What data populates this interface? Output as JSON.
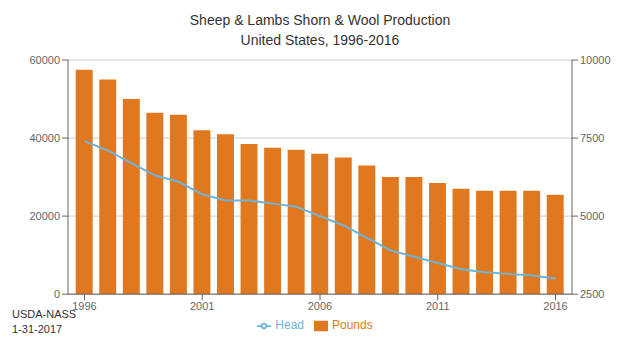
{
  "chart_data": {
    "type": "bar",
    "title": "Sheep & Lambs Shorn & Wool Production",
    "subtitle": "United States, 1996-2016",
    "annotations": [
      "USDA-NASS",
      "1-31-2017"
    ],
    "x": [
      1996,
      1997,
      1998,
      1999,
      2000,
      2001,
      2002,
      2003,
      2004,
      2005,
      2006,
      2007,
      2008,
      2009,
      2010,
      2011,
      2012,
      2013,
      2014,
      2015,
      2016
    ],
    "xlim": [
      1995.3,
      2016.7
    ],
    "xticks": [
      1996,
      2001,
      2006,
      2011,
      2016
    ],
    "ylim": [
      0,
      60000
    ],
    "yticks": [
      0,
      20000,
      40000,
      60000
    ],
    "y2lim": [
      2500,
      10000
    ],
    "y2ticks": [
      2500,
      5000,
      7500,
      10000
    ],
    "grid": true,
    "legend": "bottom",
    "series": [
      {
        "name": "Pounds",
        "type": "bar",
        "color": "#E07820",
        "values": [
          57500,
          55000,
          50000,
          46500,
          46000,
          42000,
          41000,
          38500,
          37500,
          37000,
          36000,
          35000,
          33000,
          30000,
          30000,
          28500,
          27000,
          26500,
          26500,
          26500,
          25500
        ]
      },
      {
        "name": "Head",
        "type": "line",
        "axis": "y2",
        "color": "#6EB4D8",
        "values": [
          7400,
          7100,
          6700,
          6300,
          6100,
          5700,
          5500,
          5500,
          5400,
          5300,
          5000,
          4700,
          4300,
          3900,
          3700,
          3500,
          3300,
          3200,
          3150,
          3100,
          3000
        ]
      }
    ]
  }
}
